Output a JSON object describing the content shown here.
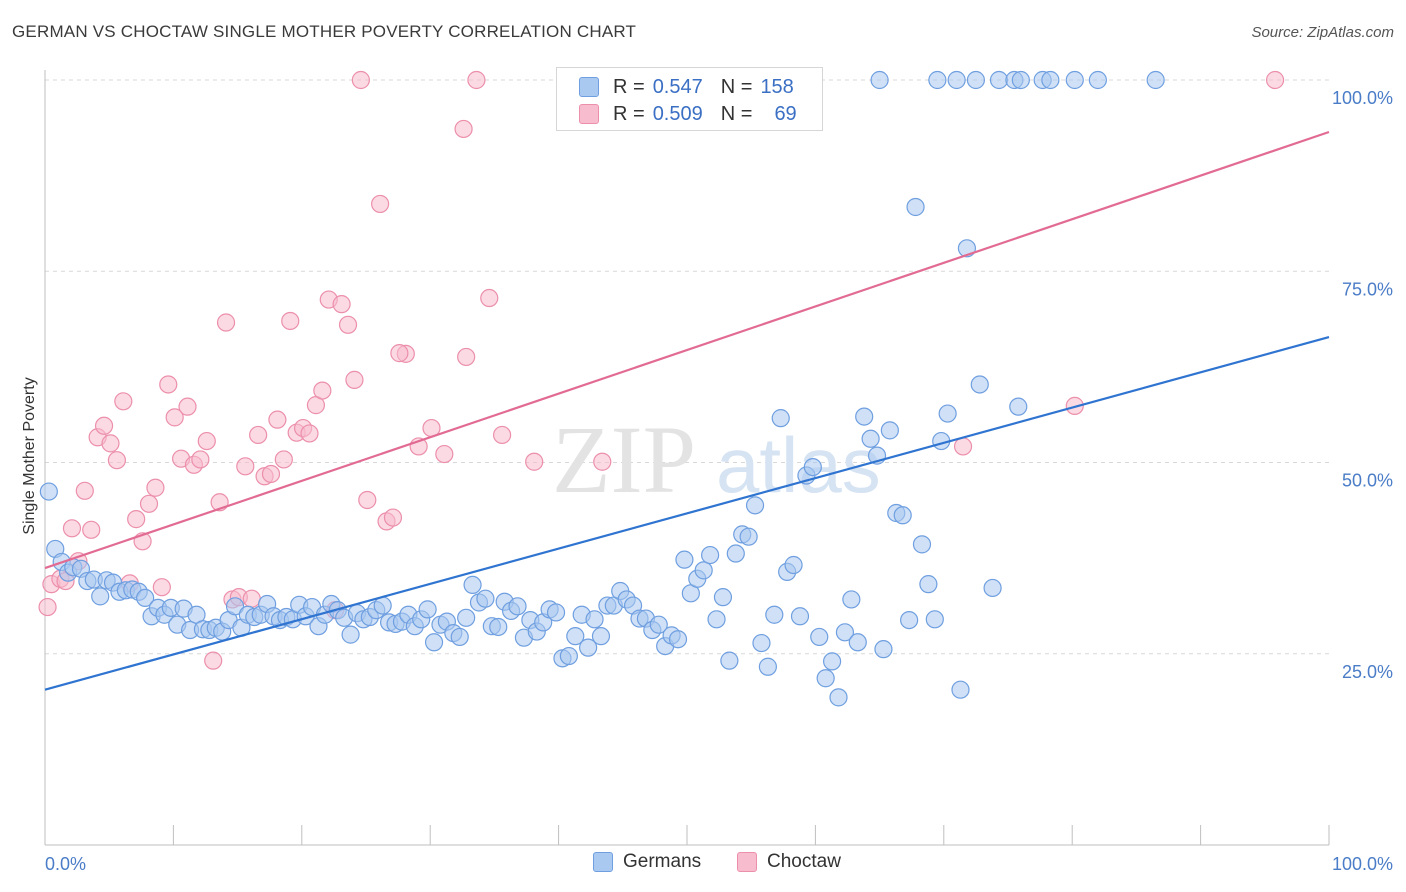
{
  "title": "GERMAN VS CHOCTAW SINGLE MOTHER POVERTY CORRELATION CHART",
  "source": "Source: ZipAtlas.com",
  "watermark": {
    "zip": "ZIP",
    "atlas": "atlas"
  },
  "legend": {
    "rows": [
      {
        "r_label": "R =",
        "r_value": "0.547",
        "n_label": "N =",
        "n_value": "158"
      },
      {
        "r_label": "R =",
        "r_value": "0.509",
        "n_label": "N =",
        "n_value": "69"
      }
    ]
  },
  "colors": {
    "germans_fill": "#aac9f0",
    "germans_stroke": "#6f9fe0",
    "germans_line": "#2f74d0",
    "choctaw_fill": "#f7bccd",
    "choctaw_stroke": "#ec8fab",
    "choctaw_line": "#e26b93",
    "tick_text": "#4a7cc7",
    "grid": "#d8d8d8"
  },
  "chart_data": {
    "type": "scatter",
    "ylabel": "Single Mother Poverty",
    "xlim": [
      0,
      100
    ],
    "ylim": [
      0,
      103
    ],
    "x_tick_labels": [
      "0.0%",
      "100.0%"
    ],
    "y_ticks": [
      {
        "value": 25,
        "label": "25.0%"
      },
      {
        "value": 50,
        "label": "50.0%"
      },
      {
        "value": 75,
        "label": "75.0%"
      },
      {
        "value": 100,
        "label": "100.0%"
      }
    ],
    "grid": "horizontal dashed",
    "series": [
      {
        "name": "Germans",
        "trend": {
          "x": [
            0,
            100
          ],
          "y": [
            20.3,
            66.4
          ]
        },
        "points": [
          [
            0.3,
            46.2
          ],
          [
            0.8,
            38.7
          ],
          [
            1.3,
            37
          ],
          [
            1.8,
            35.6
          ],
          [
            2.2,
            36.3
          ],
          [
            2.8,
            36.1
          ],
          [
            3.3,
            34.5
          ],
          [
            3.8,
            34.7
          ],
          [
            4.3,
            32.5
          ],
          [
            4.8,
            34.6
          ],
          [
            5.3,
            34.3
          ],
          [
            5.8,
            33.1
          ],
          [
            6.3,
            33.3
          ],
          [
            6.8,
            33.4
          ],
          [
            7.3,
            33.1
          ],
          [
            7.8,
            32.3
          ],
          [
            8.3,
            29.9
          ],
          [
            8.8,
            31
          ],
          [
            9.3,
            30.1
          ],
          [
            9.8,
            31
          ],
          [
            10.3,
            28.8
          ],
          [
            10.8,
            30.9
          ],
          [
            11.3,
            28.1
          ],
          [
            11.8,
            30.1
          ],
          [
            12.3,
            28.2
          ],
          [
            12.8,
            28.1
          ],
          [
            13.3,
            28.4
          ],
          [
            13.8,
            27.9
          ],
          [
            14.3,
            29.4
          ],
          [
            14.8,
            31.2
          ],
          [
            15.3,
            28.4
          ],
          [
            15.8,
            30.1
          ],
          [
            16.3,
            29.8
          ],
          [
            16.8,
            30.1
          ],
          [
            17.3,
            31.5
          ],
          [
            17.8,
            29.9
          ],
          [
            18.3,
            29.4
          ],
          [
            18.8,
            29.8
          ],
          [
            19.3,
            29.5
          ],
          [
            19.8,
            31.4
          ],
          [
            20.3,
            29.9
          ],
          [
            20.8,
            31.1
          ],
          [
            21.3,
            28.6
          ],
          [
            21.8,
            30.1
          ],
          [
            22.3,
            31.5
          ],
          [
            22.8,
            30.7
          ],
          [
            23.3,
            29.7
          ],
          [
            23.8,
            27.5
          ],
          [
            24.3,
            30.3
          ],
          [
            24.8,
            29.5
          ],
          [
            25.3,
            29.8
          ],
          [
            25.8,
            30.7
          ],
          [
            26.3,
            31.3
          ],
          [
            26.8,
            29.1
          ],
          [
            27.3,
            28.9
          ],
          [
            27.8,
            29.2
          ],
          [
            28.3,
            30.1
          ],
          [
            28.8,
            28.6
          ],
          [
            29.3,
            29.5
          ],
          [
            29.8,
            30.8
          ],
          [
            30.3,
            26.5
          ],
          [
            30.8,
            28.8
          ],
          [
            31.3,
            29.2
          ],
          [
            31.8,
            27.7
          ],
          [
            32.3,
            27.2
          ],
          [
            32.8,
            29.7
          ],
          [
            33.3,
            34
          ],
          [
            33.8,
            31.7
          ],
          [
            34.3,
            32.2
          ],
          [
            34.8,
            28.6
          ],
          [
            35.3,
            28.5
          ],
          [
            35.8,
            31.8
          ],
          [
            36.3,
            30.6
          ],
          [
            36.8,
            31.2
          ],
          [
            37.3,
            27.1
          ],
          [
            37.8,
            29.4
          ],
          [
            38.3,
            27.9
          ],
          [
            38.8,
            29.1
          ],
          [
            39.3,
            30.8
          ],
          [
            39.8,
            30.4
          ],
          [
            40.3,
            24.4
          ],
          [
            40.8,
            24.7
          ],
          [
            41.3,
            27.3
          ],
          [
            41.8,
            30.1
          ],
          [
            42.3,
            25.8
          ],
          [
            42.8,
            29.5
          ],
          [
            43.3,
            27.3
          ],
          [
            43.8,
            31.3
          ],
          [
            44.3,
            31.3
          ],
          [
            44.8,
            33.2
          ],
          [
            45.3,
            32.1
          ],
          [
            45.8,
            31.3
          ],
          [
            46.3,
            29.6
          ],
          [
            46.8,
            29.6
          ],
          [
            47.3,
            28.1
          ],
          [
            47.8,
            28.8
          ],
          [
            48.3,
            26
          ],
          [
            48.8,
            27.4
          ],
          [
            49.3,
            26.9
          ],
          [
            49.8,
            37.3
          ],
          [
            50.3,
            32.9
          ],
          [
            50.8,
            34.8
          ],
          [
            51.3,
            35.9
          ],
          [
            51.8,
            37.9
          ],
          [
            52.3,
            29.5
          ],
          [
            52.8,
            32.4
          ],
          [
            53.3,
            24.1
          ],
          [
            53.8,
            38.1
          ],
          [
            54.3,
            40.6
          ],
          [
            54.8,
            40.3
          ],
          [
            55.3,
            44.4
          ],
          [
            55.8,
            26.4
          ],
          [
            56.3,
            23.3
          ],
          [
            56.8,
            30.1
          ],
          [
            57.3,
            55.8
          ],
          [
            57.8,
            35.7
          ],
          [
            58.3,
            36.6
          ],
          [
            58.8,
            29.9
          ],
          [
            59.3,
            48.3
          ],
          [
            59.8,
            49.4
          ],
          [
            60.3,
            27.2
          ],
          [
            60.8,
            21.8
          ],
          [
            61.3,
            24
          ],
          [
            61.8,
            19.3
          ],
          [
            62.3,
            27.8
          ],
          [
            62.8,
            32.1
          ],
          [
            63.3,
            26.5
          ],
          [
            63.8,
            56
          ],
          [
            64.3,
            53.1
          ],
          [
            64.8,
            50.9
          ],
          [
            65.3,
            25.6
          ],
          [
            65.8,
            54.2
          ],
          [
            66.3,
            43.4
          ],
          [
            66.8,
            43.1
          ],
          [
            67.3,
            29.4
          ],
          [
            67.8,
            83.4
          ],
          [
            68.3,
            39.3
          ],
          [
            68.8,
            34.1
          ],
          [
            69.3,
            29.5
          ],
          [
            69.8,
            52.8
          ],
          [
            70.3,
            56.4
          ],
          [
            71.3,
            20.3
          ],
          [
            71.8,
            78
          ],
          [
            72.8,
            60.2
          ],
          [
            73.8,
            33.6
          ],
          [
            75.8,
            57.3
          ],
          [
            65,
            100
          ],
          [
            69.5,
            100
          ],
          [
            71,
            100
          ],
          [
            72.5,
            100
          ],
          [
            74.3,
            100
          ],
          [
            75.5,
            100
          ],
          [
            76,
            100
          ],
          [
            77.7,
            100
          ],
          [
            78.3,
            100
          ],
          [
            80.2,
            100
          ],
          [
            82,
            100
          ],
          [
            86.5,
            100
          ]
        ]
      },
      {
        "name": "Choctaw",
        "trend": {
          "x": [
            0,
            100
          ],
          "y": [
            36.2,
            93.2
          ]
        },
        "points": [
          [
            0.2,
            31.1
          ],
          [
            0.5,
            34.1
          ],
          [
            1.2,
            34.8
          ],
          [
            1.6,
            34.5
          ],
          [
            2.1,
            41.4
          ],
          [
            2.6,
            37.1
          ],
          [
            3.1,
            46.3
          ],
          [
            3.6,
            41.2
          ],
          [
            4.1,
            53.3
          ],
          [
            4.6,
            54.8
          ],
          [
            5.1,
            52.5
          ],
          [
            5.6,
            50.3
          ],
          [
            6.1,
            58
          ],
          [
            6.6,
            34.2
          ],
          [
            7.1,
            42.6
          ],
          [
            7.6,
            39.7
          ],
          [
            8.1,
            44.6
          ],
          [
            8.6,
            46.7
          ],
          [
            9.1,
            33.7
          ],
          [
            9.6,
            60.2
          ],
          [
            10.1,
            55.9
          ],
          [
            10.6,
            50.5
          ],
          [
            11.1,
            57.3
          ],
          [
            11.6,
            49.7
          ],
          [
            12.1,
            50.4
          ],
          [
            12.6,
            52.8
          ],
          [
            13.1,
            24.1
          ],
          [
            13.6,
            44.8
          ],
          [
            14.1,
            68.3
          ],
          [
            14.6,
            32.1
          ],
          [
            15.1,
            32.4
          ],
          [
            15.6,
            49.5
          ],
          [
            16.1,
            32.2
          ],
          [
            16.6,
            53.6
          ],
          [
            17.1,
            48.2
          ],
          [
            17.6,
            48.5
          ],
          [
            18.1,
            55.6
          ],
          [
            18.6,
            50.4
          ],
          [
            19.1,
            68.5
          ],
          [
            19.6,
            53.9
          ],
          [
            20.1,
            54.5
          ],
          [
            20.6,
            53.8
          ],
          [
            21.1,
            57.5
          ],
          [
            21.6,
            59.4
          ],
          [
            22.1,
            71.3
          ],
          [
            22.6,
            30.7
          ],
          [
            23.1,
            70.7
          ],
          [
            23.6,
            68
          ],
          [
            24.1,
            60.8
          ],
          [
            24.6,
            100
          ],
          [
            25.1,
            45.1
          ],
          [
            26.1,
            83.8
          ],
          [
            26.6,
            42.3
          ],
          [
            27.1,
            42.8
          ],
          [
            28.1,
            64.2
          ],
          [
            29.1,
            52.1
          ],
          [
            30.1,
            54.5
          ],
          [
            31.1,
            51.1
          ],
          [
            32.6,
            93.6
          ],
          [
            32.8,
            63.8
          ],
          [
            33.6,
            100
          ],
          [
            34.6,
            71.5
          ],
          [
            35.6,
            53.6
          ],
          [
            38.1,
            50.1
          ],
          [
            43.4,
            50.1
          ],
          [
            71.5,
            52.1
          ],
          [
            80.2,
            57.4
          ],
          [
            95.8,
            100
          ],
          [
            27.6,
            64.3
          ]
        ]
      }
    ]
  }
}
